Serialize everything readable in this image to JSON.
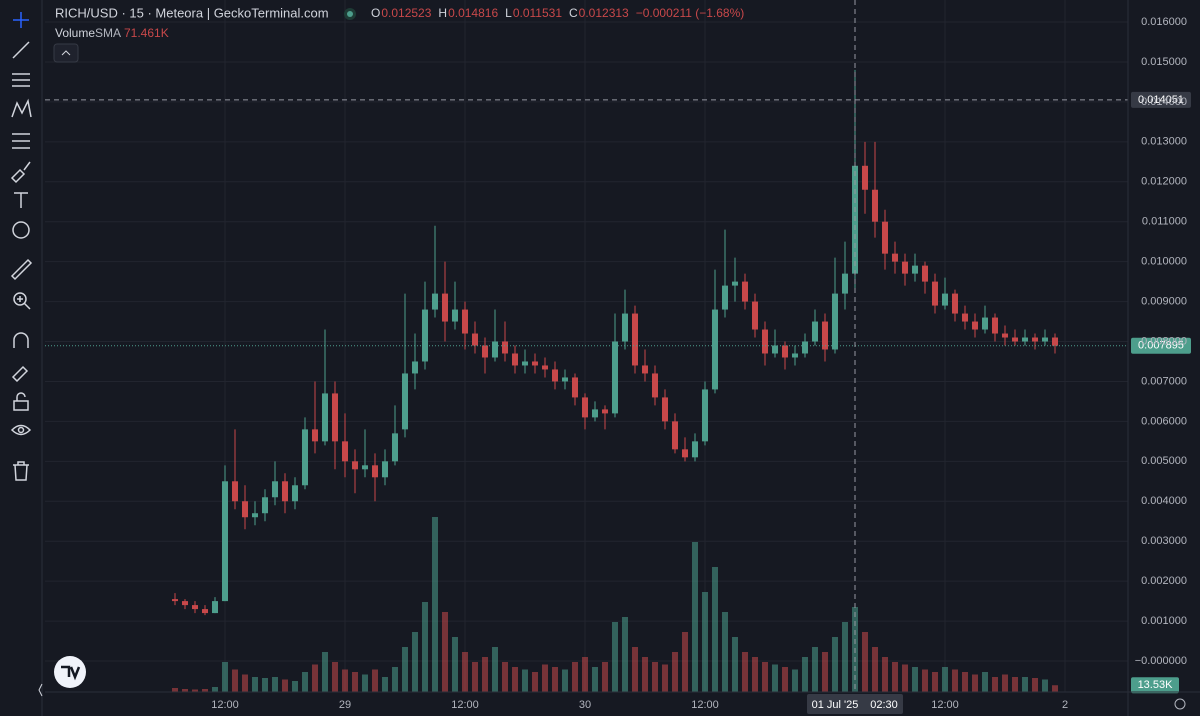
{
  "chart_data": {
    "type": "candlestick",
    "title": "RICH/USD · 15 · Meteora | GeckoTerminal.com",
    "ohlc_legend": [
      {
        "label": "O",
        "value": 0.012523
      },
      {
        "label": "H",
        "value": 0.014816
      },
      {
        "label": "L",
        "value": 0.011531
      },
      {
        "label": "C",
        "value": 0.012313
      }
    ],
    "change_text": "−0.000211 (−1.68%)",
    "volume_label": "Volume",
    "sma_label": "SMA",
    "sma_value": "71.461K",
    "up_color": "#4d9e8c",
    "down_color": "#c8484a",
    "categories": [
      null,
      null,
      null,
      null,
      null,
      null,
      null,
      null,
      null,
      null,
      null,
      null,
      null,
      null,
      null,
      null,
      null,
      null,
      null,
      null,
      null,
      null,
      null,
      null,
      null,
      null,
      null,
      null,
      null,
      null,
      null,
      null,
      null,
      null,
      null,
      null,
      null,
      null,
      null,
      null,
      null,
      null,
      null,
      null,
      null,
      null,
      null,
      null,
      null,
      null,
      null,
      null,
      null,
      null,
      null,
      null,
      null,
      null,
      null,
      null,
      null,
      null,
      null,
      null,
      null,
      null,
      null,
      null,
      null,
      null,
      null,
      null,
      null,
      null,
      null,
      null,
      null,
      null,
      null,
      null,
      null,
      null,
      null,
      null,
      null,
      null,
      null,
      null,
      null
    ],
    "ohlc": [
      [
        0.00155,
        0.0017,
        0.0014,
        0.0015
      ],
      [
        0.0015,
        0.00155,
        0.0013,
        0.0014
      ],
      [
        0.0014,
        0.0015,
        0.0012,
        0.0013
      ],
      [
        0.0013,
        0.0014,
        0.00115,
        0.0012
      ],
      [
        0.0012,
        0.0016,
        0.0012,
        0.0015
      ],
      [
        0.0015,
        0.0049,
        0.0015,
        0.0045
      ],
      [
        0.0045,
        0.0058,
        0.0038,
        0.004
      ],
      [
        0.004,
        0.0044,
        0.0033,
        0.0036
      ],
      [
        0.0036,
        0.004,
        0.0034,
        0.0037
      ],
      [
        0.0037,
        0.0043,
        0.0035,
        0.0041
      ],
      [
        0.0041,
        0.005,
        0.0039,
        0.0045
      ],
      [
        0.0045,
        0.0047,
        0.0037,
        0.004
      ],
      [
        0.004,
        0.0046,
        0.0038,
        0.0044
      ],
      [
        0.0044,
        0.0061,
        0.0043,
        0.0058
      ],
      [
        0.0058,
        0.007,
        0.0052,
        0.0055
      ],
      [
        0.0055,
        0.0083,
        0.0054,
        0.0067
      ],
      [
        0.0067,
        0.007,
        0.0048,
        0.0055
      ],
      [
        0.0055,
        0.0062,
        0.0046,
        0.005
      ],
      [
        0.005,
        0.0053,
        0.0042,
        0.0048
      ],
      [
        0.0048,
        0.0058,
        0.0046,
        0.0049
      ],
      [
        0.0049,
        0.0052,
        0.004,
        0.0046
      ],
      [
        0.0046,
        0.0053,
        0.0044,
        0.005
      ],
      [
        0.005,
        0.0064,
        0.0049,
        0.0057
      ],
      [
        0.0058,
        0.0092,
        0.0056,
        0.0072
      ],
      [
        0.0072,
        0.0082,
        0.0068,
        0.0075
      ],
      [
        0.0075,
        0.0095,
        0.0073,
        0.0088
      ],
      [
        0.0088,
        0.0109,
        0.0086,
        0.0092
      ],
      [
        0.0092,
        0.01,
        0.008,
        0.0085
      ],
      [
        0.0085,
        0.0095,
        0.0083,
        0.0088
      ],
      [
        0.0088,
        0.009,
        0.0078,
        0.0082
      ],
      [
        0.0082,
        0.0085,
        0.0077,
        0.0079
      ],
      [
        0.0079,
        0.0081,
        0.0072,
        0.0076
      ],
      [
        0.0076,
        0.0088,
        0.0075,
        0.008
      ],
      [
        0.008,
        0.0085,
        0.0075,
        0.0077
      ],
      [
        0.0077,
        0.0079,
        0.0072,
        0.0074
      ],
      [
        0.0074,
        0.0078,
        0.0072,
        0.0075
      ],
      [
        0.0075,
        0.0077,
        0.0072,
        0.0074
      ],
      [
        0.0074,
        0.0076,
        0.0071,
        0.0073
      ],
      [
        0.0073,
        0.0075,
        0.0068,
        0.007
      ],
      [
        0.007,
        0.0073,
        0.0068,
        0.0071
      ],
      [
        0.0071,
        0.0072,
        0.0064,
        0.0066
      ],
      [
        0.0066,
        0.0067,
        0.0058,
        0.0061
      ],
      [
        0.0061,
        0.0065,
        0.006,
        0.0063
      ],
      [
        0.0063,
        0.0064,
        0.0058,
        0.0062
      ],
      [
        0.0062,
        0.0087,
        0.0061,
        0.008
      ],
      [
        0.008,
        0.0093,
        0.0078,
        0.0087
      ],
      [
        0.0087,
        0.0089,
        0.0072,
        0.0074
      ],
      [
        0.0074,
        0.0078,
        0.007,
        0.0072
      ],
      [
        0.0072,
        0.0074,
        0.0064,
        0.0066
      ],
      [
        0.0066,
        0.0068,
        0.0058,
        0.006
      ],
      [
        0.006,
        0.0062,
        0.0052,
        0.0053
      ],
      [
        0.0053,
        0.0056,
        0.005,
        0.0051
      ],
      [
        0.0051,
        0.0057,
        0.005,
        0.0055
      ],
      [
        0.0055,
        0.007,
        0.0054,
        0.0068
      ],
      [
        0.0068,
        0.0098,
        0.0067,
        0.0088
      ],
      [
        0.0088,
        0.0108,
        0.0086,
        0.0094
      ],
      [
        0.0094,
        0.0101,
        0.009,
        0.0095
      ],
      [
        0.0095,
        0.0097,
        0.0088,
        0.009
      ],
      [
        0.009,
        0.0092,
        0.0081,
        0.0083
      ],
      [
        0.0083,
        0.0085,
        0.0074,
        0.0077
      ],
      [
        0.0077,
        0.0083,
        0.0076,
        0.0079
      ],
      [
        0.0079,
        0.008,
        0.0073,
        0.0076
      ],
      [
        0.0076,
        0.0079,
        0.0074,
        0.0077
      ],
      [
        0.0077,
        0.0082,
        0.0076,
        0.008
      ],
      [
        0.008,
        0.0088,
        0.0079,
        0.0085
      ],
      [
        0.0085,
        0.0087,
        0.0075,
        0.0078
      ],
      [
        0.0078,
        0.0101,
        0.0077,
        0.0092
      ],
      [
        0.0092,
        0.0105,
        0.0088,
        0.0097
      ],
      [
        0.0097,
        0.0148,
        0.0093,
        0.0124
      ],
      [
        0.0124,
        0.013,
        0.0112,
        0.0118
      ],
      [
        0.0118,
        0.013,
        0.0106,
        0.011
      ],
      [
        0.011,
        0.0113,
        0.0098,
        0.0102
      ],
      [
        0.0102,
        0.0105,
        0.0097,
        0.01
      ],
      [
        0.01,
        0.0102,
        0.0094,
        0.0097
      ],
      [
        0.0097,
        0.0102,
        0.0095,
        0.0099
      ],
      [
        0.0099,
        0.01,
        0.0092,
        0.0095
      ],
      [
        0.0095,
        0.0097,
        0.0087,
        0.0089
      ],
      [
        0.0089,
        0.0096,
        0.0088,
        0.0092
      ],
      [
        0.0092,
        0.0093,
        0.0085,
        0.0087
      ],
      [
        0.0087,
        0.0089,
        0.0083,
        0.0085
      ],
      [
        0.0085,
        0.0087,
        0.0081,
        0.0083
      ],
      [
        0.0083,
        0.0089,
        0.0082,
        0.0086
      ],
      [
        0.0086,
        0.0087,
        0.008,
        0.0082
      ],
      [
        0.0082,
        0.0084,
        0.0079,
        0.0081
      ],
      [
        0.0081,
        0.0083,
        0.0079,
        0.008
      ],
      [
        0.008,
        0.0083,
        0.0079,
        0.0081
      ],
      [
        0.0081,
        0.0082,
        0.0078,
        0.008
      ],
      [
        0.008,
        0.0083,
        0.0079,
        0.0081
      ],
      [
        0.0081,
        0.0082,
        0.0077,
        0.007895
      ]
    ],
    "volume": [
      8,
      6,
      5,
      6,
      10,
      60,
      45,
      35,
      30,
      28,
      30,
      25,
      22,
      40,
      55,
      80,
      60,
      45,
      40,
      35,
      45,
      30,
      50,
      90,
      120,
      180,
      350,
      160,
      110,
      80,
      60,
      70,
      90,
      60,
      50,
      45,
      40,
      55,
      50,
      45,
      60,
      70,
      50,
      60,
      140,
      150,
      90,
      70,
      60,
      55,
      80,
      120,
      300,
      200,
      250,
      160,
      110,
      80,
      70,
      60,
      55,
      50,
      45,
      70,
      90,
      80,
      110,
      140,
      170,
      120,
      90,
      70,
      60,
      55,
      50,
      45,
      40,
      50,
      45,
      40,
      35,
      40,
      30,
      35,
      30,
      30,
      28,
      25,
      13.53
    ],
    "volume_ylim": [
      0,
      400
    ],
    "volume_last_label": "13.53K",
    "ylim": [
      -0.000776,
      0.016551
    ],
    "yticks": [
      {
        "value": 0.016,
        "label": "0.016000"
      },
      {
        "value": 0.015,
        "label": "0.015000"
      },
      {
        "value": 0.014,
        "label": "0.014000"
      },
      {
        "value": 0.013,
        "label": "0.013000"
      },
      {
        "value": 0.012,
        "label": "0.012000"
      },
      {
        "value": 0.011,
        "label": "0.011000"
      },
      {
        "value": 0.01,
        "label": "0.010000"
      },
      {
        "value": 0.009,
        "label": "0.009000"
      },
      {
        "value": 0.008,
        "label": "0.008000"
      },
      {
        "value": 0.007,
        "label": "0.007000"
      },
      {
        "value": 0.006,
        "label": "0.006000"
      },
      {
        "value": 0.005,
        "label": "0.005000"
      },
      {
        "value": 0.004,
        "label": "0.004000"
      },
      {
        "value": 0.003,
        "label": "0.003000"
      },
      {
        "value": 0.002,
        "label": "0.002000"
      },
      {
        "value": 0.001,
        "label": "0.001000"
      },
      {
        "value": 0,
        "label": "−0.000000"
      }
    ],
    "xticks": [
      {
        "value": 5,
        "label": "12:00"
      },
      {
        "value": 17,
        "label": "29"
      },
      {
        "value": 29,
        "label": "12:00"
      },
      {
        "value": 41,
        "label": "30"
      },
      {
        "value": 53,
        "label": "12:00"
      },
      {
        "value": 77,
        "label": "12:00"
      },
      {
        "value": 89,
        "label": "2"
      }
    ],
    "last_price": 0.007895,
    "crosshair": {
      "x": 68,
      "y": 0.014051,
      "x_label": "01 Jul '25",
      "x_time_label": "02:30"
    },
    "grid": true
  }
}
